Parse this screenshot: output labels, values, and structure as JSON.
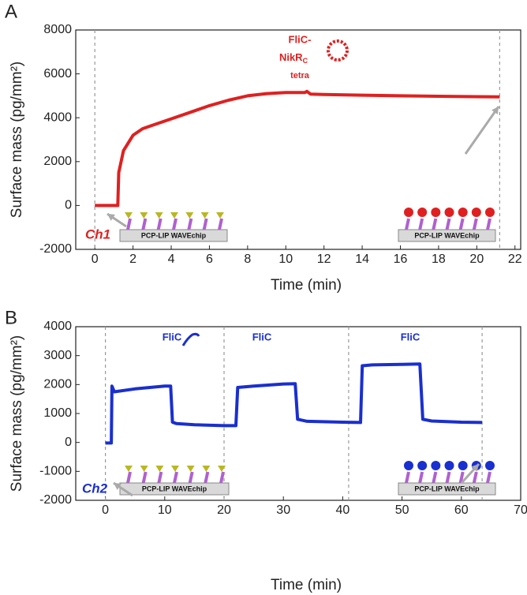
{
  "chart_data": [
    {
      "type": "line",
      "panel_label": "A",
      "xlabel": "Time (min)",
      "ylabel": "Surface mass (pg/mm²)",
      "xlim": [
        -1,
        22.3
      ],
      "ylim": [
        -2000,
        8000
      ],
      "xticks": [
        0,
        2,
        4,
        6,
        8,
        10,
        12,
        14,
        16,
        18,
        20,
        22
      ],
      "yticks": [
        -2000,
        0,
        2000,
        4000,
        6000,
        8000
      ],
      "vlines": [
        0,
        21.2
      ],
      "channel_label": "Ch1",
      "annotations": [
        "FliC-",
        "NikR",
        "C",
        "tetra"
      ],
      "chip_labels": [
        "PCP-LIP WAVEchip",
        "PCP-LIP WAVEchip"
      ],
      "series": [
        {
          "color": "#e02020",
          "x": [
            0,
            1.2,
            1.25,
            1.5,
            2,
            2.5,
            3,
            4,
            5,
            6,
            7,
            8,
            9,
            10,
            11,
            11.1,
            11.3,
            12,
            14,
            16,
            18,
            20,
            21.2
          ],
          "values": [
            0,
            0,
            1500,
            2500,
            3200,
            3500,
            3650,
            3950,
            4250,
            4550,
            4800,
            5000,
            5100,
            5150,
            5150,
            5200,
            5080,
            5060,
            5030,
            5000,
            4980,
            4960,
            4950
          ]
        }
      ]
    },
    {
      "type": "line",
      "panel_label": "B",
      "xlabel": "Time (min)",
      "ylabel": "Surface mass (pg/mm²)",
      "xlim": [
        -5,
        70
      ],
      "ylim": [
        -2000,
        4000
      ],
      "xticks": [
        0,
        10,
        20,
        30,
        40,
        50,
        60,
        70
      ],
      "yticks": [
        -2000,
        -1000,
        0,
        1000,
        2000,
        3000,
        4000
      ],
      "vlines": [
        0,
        20,
        41,
        63.5
      ],
      "channel_label": "Ch2",
      "annotations": [
        "FliC",
        "FliC",
        "FliC"
      ],
      "chip_labels": [
        "PCP-LIP WAVEchip",
        "PCP-LIP WAVEchip"
      ],
      "series": [
        {
          "color": "#1a2fd0",
          "x": [
            0,
            1,
            1.1,
            1.5,
            5,
            10,
            11,
            11.3,
            12,
            15,
            20,
            22,
            22.3,
            25,
            30,
            32,
            32.4,
            34,
            40,
            43,
            43.3,
            45,
            50,
            53,
            53.5,
            55,
            60,
            63.5
          ],
          "values": [
            -20,
            -20,
            1950,
            1750,
            1850,
            1950,
            1950,
            700,
            650,
            610,
            580,
            580,
            1900,
            1950,
            2020,
            2030,
            800,
            730,
            700,
            690,
            2650,
            2680,
            2700,
            2710,
            800,
            740,
            700,
            690
          ]
        }
      ]
    }
  ]
}
